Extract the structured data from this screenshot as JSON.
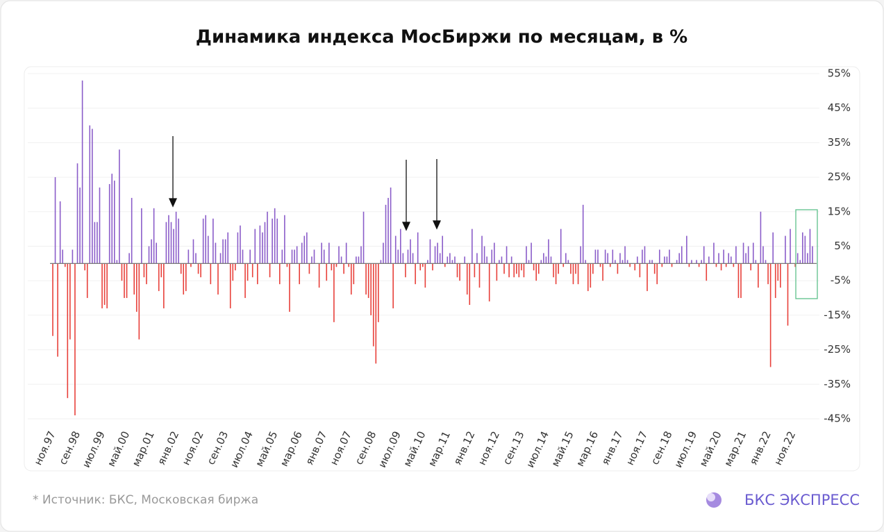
{
  "chart_data": {
    "type": "bar",
    "title": "Динамика индекса МосБиржи по месяцам, в %",
    "positive_color": "#8a5cc9",
    "negative_color": "#e8403a",
    "grid": true,
    "ylim": [
      -45,
      55
    ],
    "yticks": [
      {
        "value": 55,
        "label": "55%"
      },
      {
        "value": 45,
        "label": "45%"
      },
      {
        "value": 35,
        "label": "35%"
      },
      {
        "value": 25,
        "label": "25%"
      },
      {
        "value": 15,
        "label": "15%"
      },
      {
        "value": 5,
        "label": "5%"
      },
      {
        "value": -5,
        "label": "-5%"
      },
      {
        "value": -15,
        "label": "-15%"
      },
      {
        "value": -25,
        "label": "-25%"
      },
      {
        "value": -35,
        "label": "-35%"
      },
      {
        "value": -45,
        "label": "-45%"
      }
    ],
    "categories": [
      "ноя.97",
      null,
      null,
      null,
      null,
      null,
      null,
      null,
      null,
      null,
      "сен.98",
      null,
      null,
      null,
      null,
      null,
      null,
      null,
      null,
      null,
      "июл.99",
      null,
      null,
      null,
      null,
      null,
      null,
      null,
      null,
      null,
      "май.00",
      null,
      null,
      null,
      null,
      null,
      null,
      null,
      null,
      null,
      "мар.01",
      null,
      null,
      null,
      null,
      null,
      null,
      null,
      null,
      null,
      "янв.02",
      null,
      null,
      null,
      null,
      null,
      null,
      null,
      null,
      null,
      "ноя.02",
      null,
      null,
      null,
      null,
      null,
      null,
      null,
      null,
      null,
      "сен.03",
      null,
      null,
      null,
      null,
      null,
      null,
      null,
      null,
      null,
      "июл.04",
      null,
      null,
      null,
      null,
      null,
      null,
      null,
      null,
      null,
      "май.05",
      null,
      null,
      null,
      null,
      null,
      null,
      null,
      null,
      null,
      "мар.06",
      null,
      null,
      null,
      null,
      null,
      null,
      null,
      null,
      null,
      "янв.07",
      null,
      null,
      null,
      null,
      null,
      null,
      null,
      null,
      null,
      "ноя.07",
      null,
      null,
      null,
      null,
      null,
      null,
      null,
      null,
      null,
      "сен.08",
      null,
      null,
      null,
      null,
      null,
      null,
      null,
      null,
      null,
      "июл.09",
      null,
      null,
      null,
      null,
      null,
      null,
      null,
      null,
      null,
      "май.10",
      null,
      null,
      null,
      null,
      null,
      null,
      null,
      null,
      null,
      "мар.11",
      null,
      null,
      null,
      null,
      null,
      null,
      null,
      null,
      null,
      "янв.12",
      null,
      null,
      null,
      null,
      null,
      null,
      null,
      null,
      null,
      "ноя.12",
      null,
      null,
      null,
      null,
      null,
      null,
      null,
      null,
      null,
      "сен.13",
      null,
      null,
      null,
      null,
      null,
      null,
      null,
      null,
      null,
      "июл.14",
      null,
      null,
      null,
      null,
      null,
      null,
      null,
      null,
      null,
      "май.15",
      null,
      null,
      null,
      null,
      null,
      null,
      null,
      null,
      null,
      "мар.16",
      null,
      null,
      null,
      null,
      null,
      null,
      null,
      null,
      null,
      "янв.17",
      null,
      null,
      null,
      null,
      null,
      null,
      null,
      null,
      null,
      "ноя.17",
      null,
      null,
      null,
      null,
      null,
      null,
      null,
      null,
      null,
      "сен.18",
      null,
      null,
      null,
      null,
      null,
      null,
      null,
      null,
      null,
      "июл.19",
      null,
      null,
      null,
      null,
      null,
      null,
      null,
      null,
      null,
      "май.20",
      null,
      null,
      null,
      null,
      null,
      null,
      null,
      null,
      null,
      "мар.21",
      null,
      null,
      null,
      null,
      null,
      null,
      null,
      null,
      null,
      "янв.22",
      null,
      null,
      null,
      null,
      null,
      null,
      null,
      null,
      null,
      "ноя.22",
      null,
      null,
      null,
      null,
      null,
      null,
      null,
      null
    ],
    "values": [
      -21,
      25,
      -27,
      18,
      4,
      -1,
      -39,
      -22,
      4,
      -44,
      29,
      22,
      53,
      -2,
      -10,
      40,
      39,
      12,
      12,
      22,
      -13,
      -12,
      -13,
      23,
      26,
      24,
      1,
      33,
      -5,
      -10,
      -10,
      3,
      19,
      -9,
      -14,
      -22,
      16,
      -4,
      -6,
      5,
      7,
      16,
      6,
      -8,
      -4,
      -13,
      12,
      14,
      12,
      10,
      15,
      13,
      -3,
      -9,
      -8,
      4,
      -1,
      7,
      3,
      -3,
      -4,
      13,
      14,
      8,
      -6,
      13,
      6,
      -9,
      3,
      7,
      7,
      9,
      -13,
      -5,
      -2,
      9,
      11,
      4,
      -10,
      -5,
      4,
      -4,
      10,
      -6,
      11,
      9,
      12,
      15,
      -4,
      13,
      16,
      13,
      -6,
      4,
      14,
      -1,
      -14,
      4,
      4,
      5,
      -6,
      6,
      8,
      9,
      -3,
      2,
      4,
      0,
      -7,
      6,
      4,
      -5,
      6,
      -2,
      -17,
      -1,
      5,
      2,
      -3,
      6,
      -1,
      -9,
      -6,
      2,
      2,
      5,
      15,
      -9,
      -10,
      -15,
      -24,
      -29,
      -17,
      1,
      6,
      17,
      19,
      22,
      -13,
      8,
      4,
      10,
      3,
      -4,
      4,
      7,
      3,
      -6,
      9,
      -2,
      -1,
      -7,
      1,
      7,
      -2,
      5,
      6,
      3,
      8,
      -1,
      2,
      3,
      1,
      2,
      -4,
      -5,
      0,
      2,
      -9,
      -12,
      10,
      -4,
      3,
      -7,
      8,
      5,
      2,
      -11,
      4,
      6,
      -5,
      1,
      2,
      -3,
      5,
      -4,
      2,
      -4,
      -3,
      -4,
      -2,
      -4,
      5,
      1,
      6,
      -2,
      -5,
      -3,
      1,
      3,
      2,
      7,
      2,
      -4,
      -6,
      -3,
      10,
      -1,
      3,
      1,
      -3,
      -6,
      -3,
      -6,
      5,
      17,
      1,
      -8,
      -7,
      -3,
      4,
      4,
      -1,
      -5,
      4,
      3,
      -1,
      4,
      1,
      -3,
      3,
      1,
      5,
      1,
      -1,
      0,
      -2,
      2,
      -4,
      4,
      5,
      -8,
      1,
      1,
      -3,
      -6,
      4,
      -1,
      2,
      2,
      4,
      -1,
      0,
      1,
      3,
      5,
      0,
      8,
      -1,
      1,
      0,
      1,
      -1,
      1,
      5,
      -5,
      2,
      0,
      6,
      -1,
      3,
      -2,
      4,
      -1,
      3,
      2,
      -1,
      5,
      -10,
      -10,
      6,
      3,
      5,
      -2,
      6,
      1,
      -7,
      15,
      5,
      1,
      -6,
      -30,
      9,
      -10,
      -5,
      -7,
      0,
      8,
      -18,
      10,
      0,
      -1,
      3,
      1,
      9,
      8,
      3,
      10,
      5
    ]
  },
  "footer": {
    "source": "*  Источник: БКС, Московская биржа",
    "brand": "БКС ЭКСПРЕСС"
  }
}
